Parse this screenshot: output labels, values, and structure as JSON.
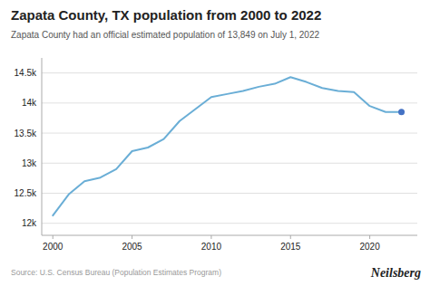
{
  "chart_data": {
    "type": "line",
    "title": "Zapata County, TX population from 2000 to 2022",
    "subtitle": "Zapata County had an official estimated population of 13,849 on July 1, 2022",
    "source": "Source: U.S. Census Bureau (Population Estimates Program)",
    "brand": "Neilsberg",
    "x": [
      2000,
      2001,
      2002,
      2003,
      2004,
      2005,
      2006,
      2007,
      2008,
      2009,
      2010,
      2011,
      2012,
      2013,
      2014,
      2015,
      2016,
      2017,
      2018,
      2019,
      2020,
      2021,
      2022
    ],
    "series": [
      {
        "color": "#6aaed6",
        "values": [
          12130,
          12480,
          12700,
          12760,
          12900,
          13200,
          13260,
          13400,
          13700,
          13900,
          14100,
          14150,
          14200,
          14270,
          14320,
          14430,
          14350,
          14250,
          14200,
          14180,
          13950,
          13850,
          13849
        ]
      },
      {
        "type": "scatter",
        "color": "#4472c4",
        "values": [
          null,
          null,
          null,
          null,
          null,
          null,
          null,
          null,
          null,
          null,
          null,
          null,
          null,
          null,
          null,
          null,
          null,
          null,
          null,
          null,
          null,
          null,
          13849
        ]
      }
    ],
    "xlim": [
      1999.3,
      2023.0
    ],
    "xticks": [
      2000,
      2005,
      2010,
      2015,
      2020
    ],
    "ylim": [
      11800,
      14750
    ],
    "yticks": [
      {
        "value": 12000,
        "label": "12k"
      },
      {
        "value": 12500,
        "label": "12.5k"
      },
      {
        "value": 13000,
        "label": "13k"
      },
      {
        "value": 13500,
        "label": "13.5k"
      },
      {
        "value": 14000,
        "label": "14k"
      },
      {
        "value": 14500,
        "label": "14.5k"
      }
    ],
    "grid": true
  }
}
